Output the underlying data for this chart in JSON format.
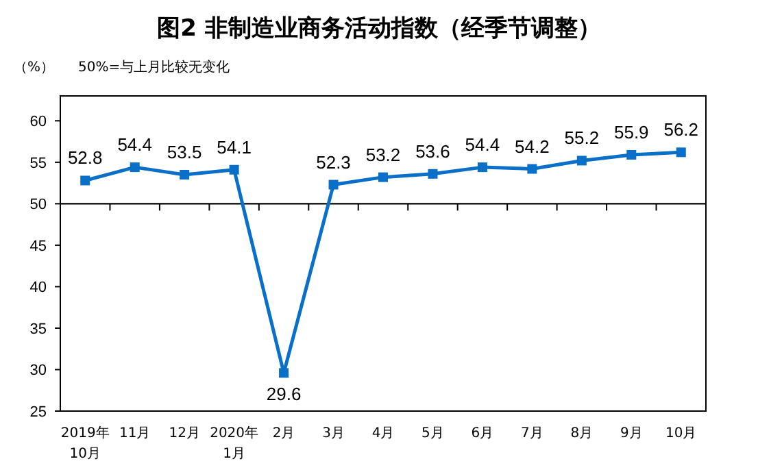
{
  "chart_data": {
    "type": "line",
    "title": "图2  非制造业商务活动指数（经季节调整）",
    "ylabel": "（%）",
    "annotations": [
      "50%=与上月比较无变化"
    ],
    "categories": [
      "2019年\n10月",
      "11月",
      "12月",
      "2020年\n1月",
      "2月",
      "3月",
      "4月",
      "5月",
      "6月",
      "7月",
      "8月",
      "9月",
      "10月"
    ],
    "series": [
      {
        "color": "#0a6fc8",
        "values": [
          52.8,
          54.4,
          53.5,
          54.1,
          29.6,
          52.3,
          53.2,
          53.6,
          54.4,
          54.2,
          55.2,
          55.9,
          56.2
        ]
      }
    ],
    "ylim": [
      25,
      63
    ],
    "yticks": [
      25,
      30,
      35,
      40,
      45,
      50,
      55,
      60
    ],
    "ref_lines": [
      {
        "axis": "y",
        "value": 50,
        "color": "#000000"
      }
    ],
    "data_labels": true,
    "marker": "square",
    "line_style": "solid",
    "grid": false
  }
}
